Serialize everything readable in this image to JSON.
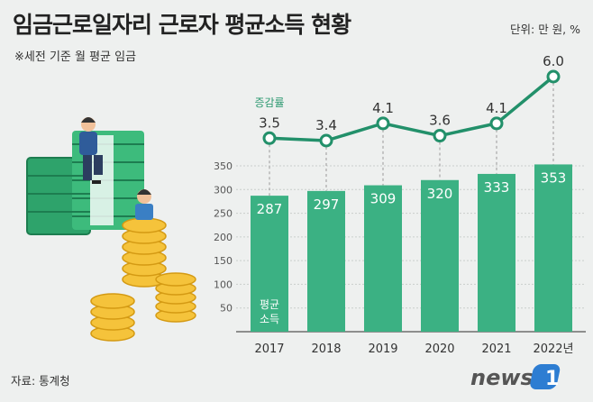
{
  "header": {
    "title": "임금근로일자리 근로자 평균소득 현황",
    "subtitle": "※세전 기준 월 평균 임금",
    "unit": "단위: 만 원, %"
  },
  "footer": {
    "source": "자료: 통계청",
    "logo_text": "news1"
  },
  "colors": {
    "bar": "#3bb183",
    "line": "#22906a",
    "background": "#eef0ef"
  },
  "chart_data": {
    "type": "bar",
    "categories": [
      "2017",
      "2018",
      "2019",
      "2020",
      "2021",
      "2022년"
    ],
    "ylim": [
      0,
      350
    ],
    "yticks": [
      50,
      100,
      150,
      200,
      250,
      300,
      350
    ],
    "grid": true,
    "series": [
      {
        "name": "평균소득",
        "type": "bar",
        "values": [
          287,
          297,
          309,
          320,
          333,
          353
        ],
        "value_labels": [
          "287",
          "297",
          "309",
          "320",
          "333",
          "353"
        ]
      },
      {
        "name": "증감률",
        "type": "line",
        "values": [
          3.5,
          3.4,
          4.1,
          3.6,
          4.1,
          6.0
        ],
        "value_labels": [
          "3.5",
          "3.4",
          "4.1",
          "3.6",
          "4.1",
          "6.0"
        ]
      }
    ]
  }
}
